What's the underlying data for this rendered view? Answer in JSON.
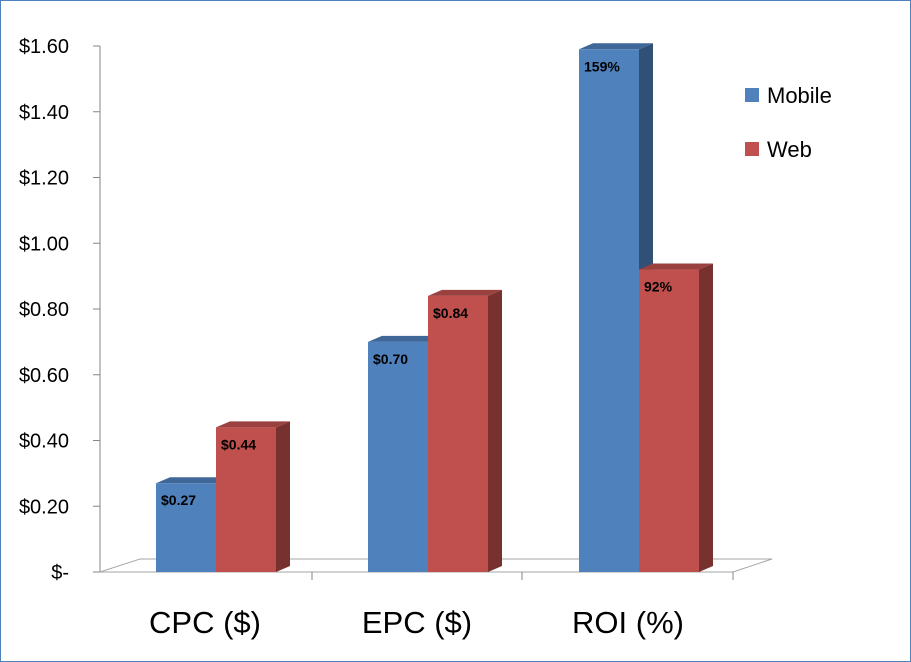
{
  "chart_data": {
    "type": "bar",
    "categories": [
      "CPC ($)",
      "EPC ($)",
      "ROI (%)"
    ],
    "series": [
      {
        "name": "Mobile",
        "values": [
          0.27,
          0.7,
          1.59
        ],
        "data_labels": [
          "$0.27",
          "$0.70",
          "159%"
        ],
        "color": "#4f81bd"
      },
      {
        "name": "Web",
        "values": [
          0.44,
          0.84,
          0.92
        ],
        "data_labels": [
          "$0.44",
          "$0.84",
          "92%"
        ],
        "color": "#c0504d"
      }
    ],
    "y_tick_labels": [
      "$-",
      "$0.20",
      "$0.40",
      "$0.60",
      "$0.80",
      "$1.00",
      "$1.20",
      "$1.40",
      "$1.60"
    ],
    "y_tick_values": [
      0,
      0.2,
      0.4,
      0.6,
      0.8,
      1.0,
      1.2,
      1.4,
      1.6
    ],
    "ylim": [
      0,
      1.6
    ],
    "title": "",
    "xlabel": "",
    "ylabel": "",
    "grid": false,
    "legend_position": "top-right",
    "style": "3d-clustered-column"
  }
}
